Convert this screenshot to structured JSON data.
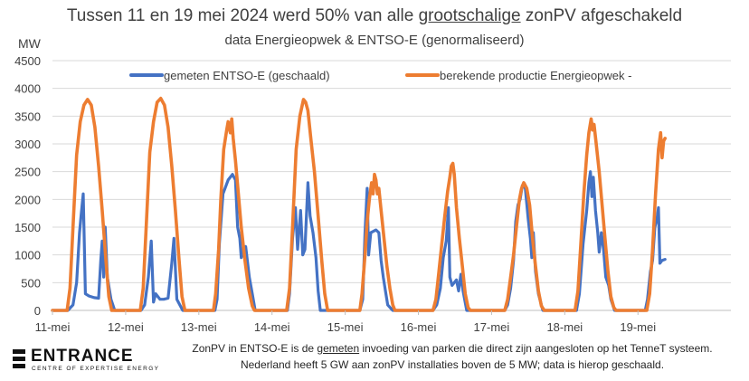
{
  "header": {
    "title_pre": "Tussen 11 en 19 mei 2024 werd 50% van alle ",
    "title_emph": "grootschalige",
    "title_post": " zonPV afgeschakeld",
    "subtitle": "data Energieopwek & ENTSO-E  (genormaliseerd)"
  },
  "footnote": {
    "line1_pre": "ZonPV in ENTSO-E is de ",
    "line1_emph": "gemeten",
    "line1_post": " invoeding van parken die direct zijn aangesloten op het TenneT systeem.",
    "line2": "Nederland heeft 5 GW aan zonPV installaties boven de 5 MW; data is hierop geschaald."
  },
  "logo": {
    "name": "ENTRANCE",
    "tagline": "CENTRE OF EXPERTISE ENERGY"
  },
  "colors": {
    "gemeten": "#4472C4",
    "berekend": "#ED7D31",
    "grid": "#D9D9D9",
    "text": "#404040"
  },
  "chart_data": {
    "type": "line",
    "title": "Tussen 11 en 19 mei 2024 werd 50% van alle grootschalige zonPV afgeschakeld",
    "subtitle": "data Energieopwek & ENTSO-E  (genormaliseerd)",
    "ylabel": "MW",
    "ylim": [
      0,
      4500
    ],
    "yticks": [
      0,
      500,
      1000,
      1500,
      2000,
      2500,
      3000,
      3500,
      4000,
      4500
    ],
    "xlim": [
      0,
      9.27
    ],
    "xticks": [
      {
        "x": 0,
        "label": "11-mei"
      },
      {
        "x": 1,
        "label": "12-mei"
      },
      {
        "x": 2,
        "label": "13-mei"
      },
      {
        "x": 3,
        "label": "14-mei"
      },
      {
        "x": 4,
        "label": "15-mei"
      },
      {
        "x": 5,
        "label": "16-mei"
      },
      {
        "x": 6,
        "label": "17-mei"
      },
      {
        "x": 7,
        "label": "18-mei"
      },
      {
        "x": 8,
        "label": "19-mei"
      }
    ],
    "grid": true,
    "legend": "top",
    "series": [
      {
        "name": "gemeten ENTSO-E  (geschaald)",
        "color": "#4472C4",
        "points": [
          [
            0,
            0
          ],
          [
            0.21,
            0
          ],
          [
            0.28,
            100
          ],
          [
            0.33,
            500
          ],
          [
            0.37,
            1400
          ],
          [
            0.39,
            1700
          ],
          [
            0.42,
            2100
          ],
          [
            0.45,
            300
          ],
          [
            0.5,
            260
          ],
          [
            0.57,
            230
          ],
          [
            0.63,
            220
          ],
          [
            0.66,
            900
          ],
          [
            0.68,
            1250
          ],
          [
            0.7,
            600
          ],
          [
            0.72,
            1500
          ],
          [
            0.75,
            600
          ],
          [
            0.8,
            200
          ],
          [
            0.85,
            0
          ],
          [
            0.9,
            0
          ],
          [
            1.0,
            0
          ],
          [
            1.21,
            0
          ],
          [
            1.26,
            100
          ],
          [
            1.31,
            600
          ],
          [
            1.35,
            1250
          ],
          [
            1.38,
            150
          ],
          [
            1.41,
            300
          ],
          [
            1.47,
            200
          ],
          [
            1.52,
            200
          ],
          [
            1.58,
            220
          ],
          [
            1.63,
            850
          ],
          [
            1.66,
            1300
          ],
          [
            1.7,
            200
          ],
          [
            1.78,
            0
          ],
          [
            1.9,
            0
          ],
          [
            2.0,
            0
          ],
          [
            2.22,
            0
          ],
          [
            2.25,
            200
          ],
          [
            2.28,
            1200
          ],
          [
            2.33,
            2100
          ],
          [
            2.4,
            2350
          ],
          [
            2.46,
            2450
          ],
          [
            2.5,
            2350
          ],
          [
            2.53,
            1500
          ],
          [
            2.56,
            1300
          ],
          [
            2.58,
            950
          ],
          [
            2.61,
            1100
          ],
          [
            2.64,
            1150
          ],
          [
            2.69,
            600
          ],
          [
            2.73,
            300
          ],
          [
            2.77,
            0
          ],
          [
            2.9,
            0
          ],
          [
            3.0,
            0
          ],
          [
            3.21,
            0
          ],
          [
            3.24,
            300
          ],
          [
            3.28,
            1300
          ],
          [
            3.32,
            1850
          ],
          [
            3.35,
            1100
          ],
          [
            3.39,
            1800
          ],
          [
            3.42,
            1000
          ],
          [
            3.45,
            1100
          ],
          [
            3.49,
            2300
          ],
          [
            3.52,
            1700
          ],
          [
            3.56,
            1400
          ],
          [
            3.6,
            950
          ],
          [
            3.63,
            350
          ],
          [
            3.66,
            0
          ],
          [
            3.9,
            0
          ],
          [
            4.0,
            0
          ],
          [
            4.2,
            0
          ],
          [
            4.24,
            200
          ],
          [
            4.27,
            1400
          ],
          [
            4.3,
            2200
          ],
          [
            4.32,
            1000
          ],
          [
            4.35,
            1400
          ],
          [
            4.42,
            1450
          ],
          [
            4.46,
            1400
          ],
          [
            4.49,
            900
          ],
          [
            4.52,
            600
          ],
          [
            4.55,
            350
          ],
          [
            4.58,
            100
          ],
          [
            4.65,
            0
          ],
          [
            4.9,
            0
          ],
          [
            5.0,
            0
          ],
          [
            5.2,
            0
          ],
          [
            5.25,
            100
          ],
          [
            5.3,
            400
          ],
          [
            5.34,
            950
          ],
          [
            5.38,
            1250
          ],
          [
            5.41,
            1850
          ],
          [
            5.43,
            600
          ],
          [
            5.46,
            450
          ],
          [
            5.52,
            550
          ],
          [
            5.55,
            350
          ],
          [
            5.58,
            650
          ],
          [
            5.61,
            350
          ],
          [
            5.66,
            0
          ],
          [
            5.9,
            0
          ],
          [
            6.0,
            0
          ],
          [
            6.18,
            0
          ],
          [
            6.22,
            100
          ],
          [
            6.26,
            400
          ],
          [
            6.3,
            900
          ],
          [
            6.33,
            1600
          ],
          [
            6.36,
            1900
          ],
          [
            6.39,
            2000
          ],
          [
            6.42,
            2250
          ],
          [
            6.46,
            2200
          ],
          [
            6.5,
            1650
          ],
          [
            6.53,
            1300
          ],
          [
            6.55,
            950
          ],
          [
            6.57,
            1400
          ],
          [
            6.6,
            700
          ],
          [
            6.64,
            300
          ],
          [
            6.7,
            0
          ],
          [
            6.9,
            0
          ],
          [
            7.0,
            0
          ],
          [
            7.16,
            0
          ],
          [
            7.2,
            300
          ],
          [
            7.25,
            1200
          ],
          [
            7.3,
            1800
          ],
          [
            7.33,
            2300
          ],
          [
            7.35,
            2500
          ],
          [
            7.37,
            2050
          ],
          [
            7.39,
            2400
          ],
          [
            7.42,
            1800
          ],
          [
            7.45,
            1400
          ],
          [
            7.47,
            1050
          ],
          [
            7.5,
            1400
          ],
          [
            7.53,
            1100
          ],
          [
            7.56,
            600
          ],
          [
            7.6,
            450
          ],
          [
            7.63,
            200
          ],
          [
            7.68,
            0
          ],
          [
            7.8,
            0
          ],
          [
            8.0,
            0
          ],
          [
            8.1,
            0
          ],
          [
            8.13,
            200
          ],
          [
            8.17,
            700
          ],
          [
            8.2,
            900
          ],
          [
            8.23,
            1500
          ],
          [
            8.26,
            1650
          ],
          [
            8.28,
            1850
          ],
          [
            8.3,
            850
          ],
          [
            8.33,
            900
          ],
          [
            8.37,
            920
          ]
        ]
      },
      {
        "name": "berekende productie Energieopwek -",
        "color": "#ED7D31",
        "points": [
          [
            0,
            0
          ],
          [
            0.2,
            0
          ],
          [
            0.24,
            400
          ],
          [
            0.28,
            1500
          ],
          [
            0.33,
            2800
          ],
          [
            0.38,
            3400
          ],
          [
            0.43,
            3700
          ],
          [
            0.48,
            3800
          ],
          [
            0.53,
            3700
          ],
          [
            0.58,
            3300
          ],
          [
            0.63,
            2600
          ],
          [
            0.68,
            1800
          ],
          [
            0.73,
            900
          ],
          [
            0.77,
            250
          ],
          [
            0.81,
            0
          ],
          [
            0.9,
            0
          ],
          [
            1.0,
            0
          ],
          [
            1.2,
            0
          ],
          [
            1.24,
            400
          ],
          [
            1.28,
            1500
          ],
          [
            1.33,
            2850
          ],
          [
            1.38,
            3400
          ],
          [
            1.43,
            3750
          ],
          [
            1.48,
            3820
          ],
          [
            1.53,
            3700
          ],
          [
            1.58,
            3300
          ],
          [
            1.63,
            2600
          ],
          [
            1.68,
            1800
          ],
          [
            1.73,
            900
          ],
          [
            1.77,
            250
          ],
          [
            1.81,
            0
          ],
          [
            1.9,
            0
          ],
          [
            2.0,
            0
          ],
          [
            2.2,
            0
          ],
          [
            2.23,
            300
          ],
          [
            2.27,
            1100
          ],
          [
            2.3,
            2000
          ],
          [
            2.34,
            2900
          ],
          [
            2.38,
            3250
          ],
          [
            2.4,
            3400
          ],
          [
            2.43,
            3200
          ],
          [
            2.45,
            3450
          ],
          [
            2.47,
            3100
          ],
          [
            2.5,
            2700
          ],
          [
            2.54,
            2100
          ],
          [
            2.58,
            1500
          ],
          [
            2.63,
            900
          ],
          [
            2.68,
            400
          ],
          [
            2.73,
            80
          ],
          [
            2.76,
            0
          ],
          [
            2.9,
            0
          ],
          [
            3.0,
            0
          ],
          [
            3.2,
            0
          ],
          [
            3.24,
            400
          ],
          [
            3.28,
            1500
          ],
          [
            3.33,
            2900
          ],
          [
            3.38,
            3500
          ],
          [
            3.43,
            3800
          ],
          [
            3.46,
            3750
          ],
          [
            3.49,
            3600
          ],
          [
            3.53,
            3100
          ],
          [
            3.58,
            2500
          ],
          [
            3.63,
            1700
          ],
          [
            3.68,
            900
          ],
          [
            3.72,
            300
          ],
          [
            3.76,
            0
          ],
          [
            3.9,
            0
          ],
          [
            4.0,
            0
          ],
          [
            4.2,
            0
          ],
          [
            4.23,
            300
          ],
          [
            4.27,
            1000
          ],
          [
            4.3,
            1600
          ],
          [
            4.33,
            2000
          ],
          [
            4.36,
            2300
          ],
          [
            4.38,
            2100
          ],
          [
            4.4,
            2450
          ],
          [
            4.42,
            2350
          ],
          [
            4.44,
            2100
          ],
          [
            4.46,
            2200
          ],
          [
            4.49,
            1800
          ],
          [
            4.53,
            1300
          ],
          [
            4.57,
            800
          ],
          [
            4.61,
            400
          ],
          [
            4.65,
            100
          ],
          [
            4.68,
            0
          ],
          [
            4.9,
            0
          ],
          [
            5.0,
            0
          ],
          [
            5.2,
            0
          ],
          [
            5.24,
            200
          ],
          [
            5.28,
            700
          ],
          [
            5.32,
            1200
          ],
          [
            5.36,
            1700
          ],
          [
            5.4,
            2150
          ],
          [
            5.43,
            2400
          ],
          [
            5.45,
            2600
          ],
          [
            5.47,
            2650
          ],
          [
            5.49,
            2450
          ],
          [
            5.52,
            1850
          ],
          [
            5.56,
            1300
          ],
          [
            5.6,
            800
          ],
          [
            5.64,
            300
          ],
          [
            5.68,
            50
          ],
          [
            5.71,
            0
          ],
          [
            5.9,
            0
          ],
          [
            6.0,
            0
          ],
          [
            6.18,
            0
          ],
          [
            6.22,
            200
          ],
          [
            6.26,
            600
          ],
          [
            6.3,
            1000
          ],
          [
            6.34,
            1500
          ],
          [
            6.38,
            2000
          ],
          [
            6.41,
            2200
          ],
          [
            6.44,
            2300
          ],
          [
            6.48,
            2200
          ],
          [
            6.52,
            1900
          ],
          [
            6.56,
            1300
          ],
          [
            6.6,
            800
          ],
          [
            6.64,
            350
          ],
          [
            6.68,
            80
          ],
          [
            6.72,
            0
          ],
          [
            6.9,
            0
          ],
          [
            7.0,
            0
          ],
          [
            7.14,
            0
          ],
          [
            7.18,
            350
          ],
          [
            7.22,
            1200
          ],
          [
            7.26,
            2100
          ],
          [
            7.3,
            2800
          ],
          [
            7.33,
            3200
          ],
          [
            7.36,
            3450
          ],
          [
            7.38,
            3250
          ],
          [
            7.4,
            3350
          ],
          [
            7.43,
            3000
          ],
          [
            7.47,
            2500
          ],
          [
            7.51,
            1900
          ],
          [
            7.55,
            1300
          ],
          [
            7.59,
            700
          ],
          [
            7.63,
            250
          ],
          [
            7.67,
            50
          ],
          [
            7.7,
            0
          ],
          [
            7.8,
            0
          ],
          [
            8.0,
            0
          ],
          [
            8.12,
            0
          ],
          [
            8.16,
            300
          ],
          [
            8.2,
            1100
          ],
          [
            8.24,
            2100
          ],
          [
            8.28,
            2900
          ],
          [
            8.31,
            3200
          ],
          [
            8.33,
            2750
          ],
          [
            8.35,
            3050
          ],
          [
            8.37,
            3100
          ]
        ]
      }
    ]
  }
}
